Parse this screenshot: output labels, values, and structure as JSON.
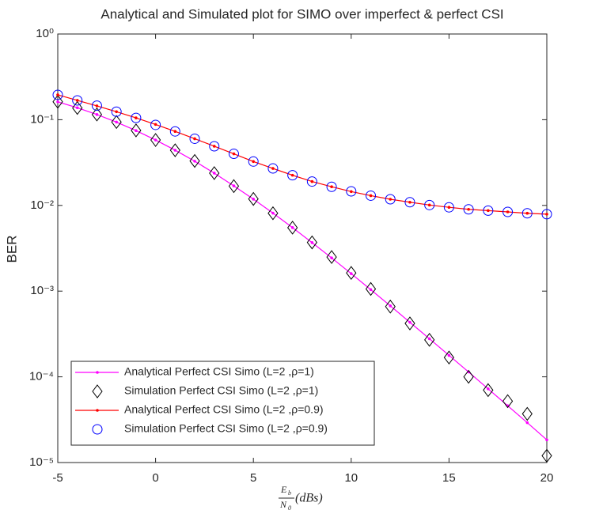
{
  "chart_data": {
    "type": "line",
    "title": "Analytical and Simulated plot for SIMO over imperfect & perfect CSI",
    "y_label": "BER",
    "x_label": [
      "E",
      "b",
      "N",
      "0",
      "(dBs)"
    ],
    "log_y": true,
    "x": [
      -5,
      -4,
      -3,
      -2,
      -1,
      0,
      1,
      2,
      3,
      4,
      5,
      6,
      7,
      8,
      9,
      10,
      11,
      12,
      13,
      14,
      15,
      16,
      17,
      18,
      19,
      20
    ],
    "xlim": [
      -5,
      20
    ],
    "xticks": [
      -5,
      0,
      5,
      10,
      15,
      20
    ],
    "ylim": [
      1e-05,
      1
    ],
    "yticks": [
      {
        "value": 1e-05,
        "label": "10⁻⁵"
      },
      {
        "value": 0.0001,
        "label": "10⁻⁴"
      },
      {
        "value": 0.001,
        "label": "10⁻³"
      },
      {
        "value": 0.01,
        "label": "10⁻²"
      },
      {
        "value": 0.1,
        "label": "10⁻¹"
      },
      {
        "value": 1,
        "label": "10⁰"
      }
    ],
    "legend": "lower left",
    "series": [
      {
        "name": "Analytical Perfect CSI Simo (L=2 ,ρ=1)",
        "color": "#ff00ff",
        "style": "line",
        "values": [
          0.1618,
          0.1378,
          0.1149,
          0.0937,
          0.0746,
          0.058,
          0.0441,
          0.0328,
          0.0238,
          0.0169,
          0.01184,
          0.00813,
          0.00551,
          0.00368,
          0.00244,
          0.0016,
          0.00104,
          0.000673,
          0.000433,
          0.000278,
          0.000178,
          0.000114,
          7.24e-05,
          4.6e-05,
          2.92e-05,
          1.84e-05
        ]
      },
      {
        "name": "Simulation Perfect CSI Simo (L=2 ,ρ=1)",
        "color": "#000000",
        "style": "diamond",
        "values": [
          0.162,
          0.137,
          0.115,
          0.094,
          0.075,
          0.058,
          0.044,
          0.033,
          0.0238,
          0.0168,
          0.0119,
          0.0081,
          0.0055,
          0.0037,
          0.0025,
          0.00163,
          0.00106,
          0.00066,
          0.00042,
          0.00027,
          0.000168,
          0.0001,
          7e-05,
          5.2e-05,
          3.7e-05,
          1.2e-05
        ]
      },
      {
        "name": "Analytical Perfect CSI Simo (L=2 ,ρ=0.9)",
        "color": "#ff0000",
        "style": "line",
        "values": [
          0.195,
          0.168,
          0.145,
          0.124,
          0.105,
          0.088,
          0.073,
          0.06,
          0.049,
          0.04,
          0.0325,
          0.027,
          0.0225,
          0.019,
          0.0165,
          0.0145,
          0.013,
          0.0118,
          0.0109,
          0.0101,
          0.0095,
          0.009,
          0.0087,
          0.0084,
          0.0081,
          0.0079
        ]
      },
      {
        "name": "Simulation Perfect CSI Simo (L=2 ,ρ=0.9)",
        "color": "#0000ff",
        "style": "circle",
        "values": [
          0.195,
          0.168,
          0.146,
          0.124,
          0.105,
          0.087,
          0.073,
          0.06,
          0.049,
          0.04,
          0.0325,
          0.027,
          0.0225,
          0.019,
          0.0165,
          0.0146,
          0.013,
          0.0118,
          0.0109,
          0.0101,
          0.0095,
          0.009,
          0.0087,
          0.0084,
          0.0081,
          0.0079
        ]
      }
    ]
  }
}
